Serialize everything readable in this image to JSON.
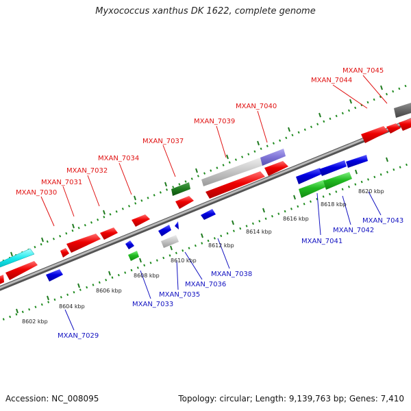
{
  "title": "Myxococcus xanthus DK 1622, complete genome",
  "footer": {
    "accession": "Accession: NC_008095",
    "summary": "Topology: circular; Length: 9,139,763 bp; Genes: 7,410"
  },
  "colors": {
    "red_label": "#e01010",
    "blue_label": "#1010c0",
    "backbone": "#8a8a8a"
  },
  "scale_ticks": [
    "8602 kbp",
    "8604 kbp",
    "8606 kbp",
    "8608 kbp",
    "8610 kbp",
    "8612 kbp",
    "8614 kbp",
    "8616 kbp",
    "8618 kbp",
    "8620 kbp"
  ],
  "forward_gene_labels": [
    "MXAN_7030",
    "MXAN_7031",
    "MXAN_7032",
    "MXAN_7034",
    "MXAN_7037",
    "MXAN_7039",
    "MXAN_7040",
    "MXAN_7044",
    "MXAN_7045"
  ],
  "reverse_gene_labels": [
    "MXAN_7029",
    "MXAN_7033",
    "MXAN_7035",
    "MXAN_7036",
    "MXAN_7038",
    "MXAN_7041",
    "MXAN_7042",
    "MXAN_7043"
  ]
}
